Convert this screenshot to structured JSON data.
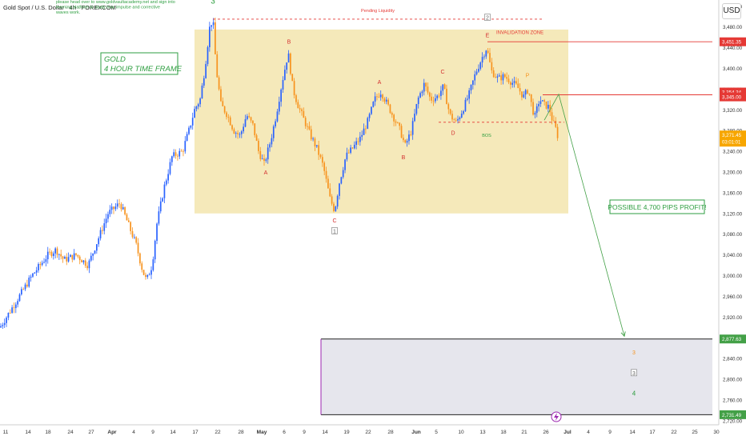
{
  "header": {
    "symbol_title": "Gold Spot / U.S. Dollar · 4h · FOREXCOM",
    "promo_note": "please head over to www.goldvaultacademy.net and sign into learning platform to study how impulse and corrective waves work.",
    "currency": "USD"
  },
  "colors": {
    "candle_up": "#2962ff",
    "candle_down": "#f7931e",
    "range_box": "#f2e2a3",
    "target_box": "#dcdce6",
    "invalidation": "#e53935",
    "wave_green": "#2e9e40",
    "wave_red": "#d32f2f",
    "price_current": "#f7a600",
    "target_price": "#43a047"
  },
  "chart_data": {
    "type": "candlestick",
    "instrument": "Gold Spot / U.S. Dollar",
    "timeframe": "4h",
    "x_ticks": [
      "11",
      "14",
      "18",
      "24",
      "27",
      "Apr",
      "4",
      "9",
      "14",
      "17",
      "22",
      "28",
      "May",
      "6",
      "9",
      "14",
      "19",
      "22",
      "28",
      "Jun",
      "5",
      "10",
      "13",
      "18",
      "21",
      "26",
      "Jul",
      "4",
      "9",
      "14",
      "17",
      "22",
      "25",
      "30"
    ],
    "y_ticks": [
      2720,
      2760,
      2800,
      2840,
      2880,
      2920,
      2960,
      3000,
      3040,
      3080,
      3120,
      3160,
      3200,
      3240,
      3280,
      3320,
      3360,
      3400,
      3440,
      3480,
      3520
    ],
    "y_range": [
      2712,
      3532
    ],
    "price_path_key": [
      [
        0,
        2900
      ],
      [
        20,
        2950
      ],
      [
        40,
        3000
      ],
      [
        60,
        3040
      ],
      [
        70,
        3050
      ],
      [
        80,
        3030
      ],
      [
        95,
        3040
      ],
      [
        110,
        3020
      ],
      [
        120,
        3060
      ],
      [
        135,
        3120
      ],
      [
        150,
        3140
      ],
      [
        160,
        3100
      ],
      [
        170,
        3060
      ],
      [
        178,
        3010
      ],
      [
        183,
        2990
      ],
      [
        190,
        3020
      ],
      [
        196,
        3100
      ],
      [
        205,
        3170
      ],
      [
        215,
        3230
      ],
      [
        228,
        3240
      ],
      [
        236,
        3280
      ],
      [
        243,
        3320
      ],
      [
        250,
        3340
      ],
      [
        256,
        3400
      ],
      [
        262,
        3480
      ],
      [
        266,
        3495
      ],
      [
        270,
        3400
      ],
      [
        276,
        3330
      ],
      [
        284,
        3310
      ],
      [
        292,
        3280
      ],
      [
        300,
        3270
      ],
      [
        308,
        3310
      ],
      [
        316,
        3290
      ],
      [
        323,
        3240
      ],
      [
        330,
        3215
      ],
      [
        338,
        3260
      ],
      [
        345,
        3310
      ],
      [
        352,
        3370
      ],
      [
        360,
        3430
      ],
      [
        366,
        3360
      ],
      [
        372,
        3330
      ],
      [
        380,
        3300
      ],
      [
        388,
        3270
      ],
      [
        396,
        3245
      ],
      [
        404,
        3210
      ],
      [
        412,
        3150
      ],
      [
        418,
        3125
      ],
      [
        424,
        3180
      ],
      [
        432,
        3230
      ],
      [
        440,
        3245
      ],
      [
        450,
        3265
      ],
      [
        460,
        3300
      ],
      [
        468,
        3340
      ],
      [
        476,
        3355
      ],
      [
        484,
        3330
      ],
      [
        492,
        3305
      ],
      [
        500,
        3280
      ],
      [
        506,
        3250
      ],
      [
        514,
        3280
      ],
      [
        522,
        3340
      ],
      [
        530,
        3370
      ],
      [
        538,
        3340
      ],
      [
        546,
        3345
      ],
      [
        554,
        3365
      ],
      [
        562,
        3310
      ],
      [
        570,
        3295
      ],
      [
        578,
        3320
      ],
      [
        586,
        3350
      ],
      [
        594,
        3390
      ],
      [
        602,
        3420
      ],
      [
        608,
        3440
      ],
      [
        614,
        3395
      ],
      [
        622,
        3380
      ],
      [
        630,
        3385
      ],
      [
        638,
        3375
      ],
      [
        646,
        3365
      ],
      [
        654,
        3345
      ],
      [
        660,
        3360
      ],
      [
        664,
        3330
      ],
      [
        668,
        3305
      ],
      [
        674,
        3340
      ],
      [
        680,
        3330
      ],
      [
        686,
        3325
      ],
      [
        690,
        3300
      ],
      [
        694,
        3285
      ],
      [
        697,
        3268
      ]
    ],
    "price_labels": [
      {
        "value": 3451.35,
        "label": "3,451.35",
        "color": "#e53935"
      },
      {
        "value": 3354.34,
        "label": "3,354.34",
        "color": "#e53935"
      },
      {
        "value": 3345.0,
        "label": "3,345.00",
        "color": "#e53935"
      },
      {
        "value": 3271.45,
        "label": "3,271.45",
        "sub": "03:01:01",
        "color": "#f7a600"
      },
      {
        "value": 2877.63,
        "label": "2,877.63",
        "color": "#43a047"
      },
      {
        "value": 2731.49,
        "label": "2,731.49",
        "color": "#43a047"
      }
    ],
    "annotations": {
      "title_box": [
        "GOLD",
        "4 HOUR TIME FRAME"
      ],
      "pending_liquidity": "Pending Liquidity",
      "invalidation_zone": "INVALIDATION ZONE",
      "bos": "BOS",
      "profit_label": "POSSIBLE 4,700 PIPS PROFIT!",
      "wave_labels": [
        {
          "text": "3",
          "x": 266,
          "price": 3525,
          "color": "#2e9e40",
          "size": 10
        },
        {
          "text": "A",
          "x": 332,
          "price": 3195,
          "color": "#d32f2f",
          "size": 7
        },
        {
          "text": "B",
          "x": 361,
          "price": 3448,
          "color": "#d32f2f",
          "size": 7
        },
        {
          "text": "C",
          "x": 418,
          "price": 3103,
          "color": "#d32f2f",
          "size": 7
        },
        {
          "text": "1",
          "x": 418,
          "price": 3082,
          "color": "#666666",
          "size": 7,
          "boxed": true
        },
        {
          "text": "A",
          "x": 474,
          "price": 3370,
          "color": "#d32f2f",
          "size": 7
        },
        {
          "text": "B",
          "x": 504,
          "price": 3225,
          "color": "#d32f2f",
          "size": 7
        },
        {
          "text": "C",
          "x": 553,
          "price": 3390,
          "color": "#d32f2f",
          "size": 7
        },
        {
          "text": "D",
          "x": 566,
          "price": 3272,
          "color": "#d32f2f",
          "size": 7
        },
        {
          "text": "2",
          "x": 609,
          "price": 3494,
          "color": "#666666",
          "size": 7,
          "boxed": true
        },
        {
          "text": "E",
          "x": 609,
          "price": 3460,
          "color": "#d32f2f",
          "size": 7
        },
        {
          "text": "P",
          "x": 659,
          "price": 3383,
          "color": "#f7931e",
          "size": 7
        },
        {
          "text": "3",
          "x": 792,
          "price": 2848,
          "color": "#f7931e",
          "size": 7
        },
        {
          "text": "3",
          "x": 792,
          "price": 2808,
          "color": "#666666",
          "size": 7,
          "boxed": true
        },
        {
          "text": "4",
          "x": 792,
          "price": 2768,
          "color": "#2e9e40",
          "size": 8
        }
      ]
    },
    "zones": {
      "range_box": {
        "x_from": 243,
        "x_to": 710,
        "price_from": 3120,
        "price_to": 3475
      },
      "target_box": {
        "x_from": 401,
        "x_to": 890,
        "price_from": 2731.49,
        "price_to": 2877.63
      },
      "pending_liquidity_line": {
        "x_from": 266,
        "x_to": 678,
        "price": 3495
      },
      "invalidation_line": {
        "x_from": 609,
        "x_to": 890,
        "price": 3451.35
      },
      "resistance_line": {
        "x_from": 678,
        "x_to": 890,
        "price": 3349
      },
      "bos_line": {
        "x_from": 548,
        "x_to": 705,
        "price": 3296
      },
      "projection": [
        [
          680,
          3300
        ],
        [
          698,
          3350
        ],
        [
          780,
          2883
        ]
      ]
    }
  }
}
